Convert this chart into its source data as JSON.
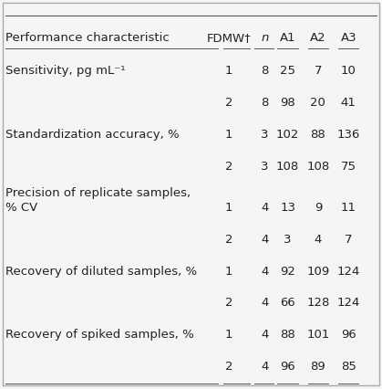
{
  "headers": [
    "Performance characteristic",
    "FDMW†",
    "n",
    "A1",
    "A2",
    "A3"
  ],
  "header_italic_col": 2,
  "rows": [
    {
      "label": "Sensitivity, pg mL⁻¹",
      "fdmw": "1",
      "n": "8",
      "A1": "25",
      "A2": "7",
      "A3": "10",
      "label_row": 1
    },
    {
      "label": "",
      "fdmw": "2",
      "n": "8",
      "A1": "98",
      "A2": "20",
      "A3": "41",
      "label_row": 0
    },
    {
      "label": "Standardization accuracy, %",
      "fdmw": "1",
      "n": "3",
      "A1": "102",
      "A2": "88",
      "A3": "136",
      "label_row": 1
    },
    {
      "label": "",
      "fdmw": "2",
      "n": "3",
      "A1": "108",
      "A2": "108",
      "A3": "75",
      "label_row": 0
    },
    {
      "label": "Precision of replicate samples,\n% CV",
      "fdmw": "1",
      "n": "4",
      "A1": "13",
      "A2": "9",
      "A3": "11",
      "label_row": 1
    },
    {
      "label": "",
      "fdmw": "2",
      "n": "4",
      "A1": "3",
      "A2": "4",
      "A3": "7",
      "label_row": 0
    },
    {
      "label": "Recovery of diluted samples, %",
      "fdmw": "1",
      "n": "4",
      "A1": "92",
      "A2": "109",
      "A3": "124",
      "label_row": 1
    },
    {
      "label": "",
      "fdmw": "2",
      "n": "4",
      "A1": "66",
      "A2": "128",
      "A3": "124",
      "label_row": 0
    },
    {
      "label": "Recovery of spiked samples, %",
      "fdmw": "1",
      "n": "4",
      "A1": "88",
      "A2": "101",
      "A3": "96",
      "label_row": 1
    },
    {
      "label": "",
      "fdmw": "2",
      "n": "4",
      "A1": "96",
      "A2": "89",
      "A3": "85",
      "label_row": 0
    }
  ],
  "bg_color": "#f5f5f5",
  "font_size": 9.5,
  "header_font_size": 9.5,
  "line_color": "#555555",
  "text_color": "#222222"
}
